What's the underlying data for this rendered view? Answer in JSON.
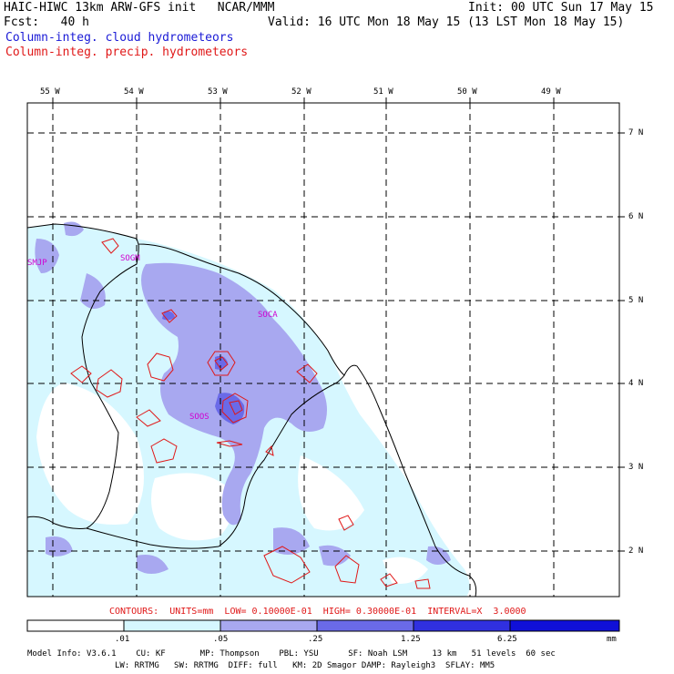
{
  "header": {
    "title": "HAIC-HIWC 13km ARW-GFS init   NCAR/MMM",
    "init": "Init: 00 UTC Sun 17 May 15",
    "fcst": "Fcst:   40 h",
    "valid": "Valid: 16 UTC Mon 18 May 15 (13 LST Mon 18 May 15)",
    "legend_cloud": "Column-integ. cloud hydrometeors",
    "legend_precip": "Column-integ. precip. hydrometeors"
  },
  "colors": {
    "cloud_label": "#1a1ad6",
    "precip_label": "#e01818",
    "shade_1": "#d6f7ff",
    "shade_2": "#a8a8f0",
    "shade_3": "#6a6ae8",
    "shade_4": "#3030e0",
    "shade_5": "#1010d8",
    "contour": "#e01818",
    "station": "#d000d0"
  },
  "map": {
    "lon_labels": [
      "55 W",
      "54 W",
      "53 W",
      "52 W",
      "51 W",
      "50 W",
      "49 W"
    ],
    "lat_labels": [
      "7 N",
      "6 N",
      "5 N",
      "4 N",
      "3 N",
      "2 N"
    ],
    "stations": [
      "SMJP",
      "SOGM",
      "SOCA",
      "SOOS"
    ]
  },
  "footer": {
    "contours": "CONTOURS:  UNITS=mm  LOW= 0.10000E-01  HIGH= 0.30000E-01  INTERVAL=X  3.0000",
    "scale_labels": [
      ".01",
      ".05",
      ".25",
      "1.25",
      "6.25"
    ],
    "units": "mm",
    "model_line1": "Model Info: V3.6.1    CU: KF       MP: Thompson    PBL: YSU      SF: Noah LSM     13 km   51 levels  60 sec",
    "model_line2": "LW: RRTMG   SW: RRTMG  DIFF: full   KM: 2D Smagor DAMP: Rayleigh3  SFLAY: MM5"
  }
}
